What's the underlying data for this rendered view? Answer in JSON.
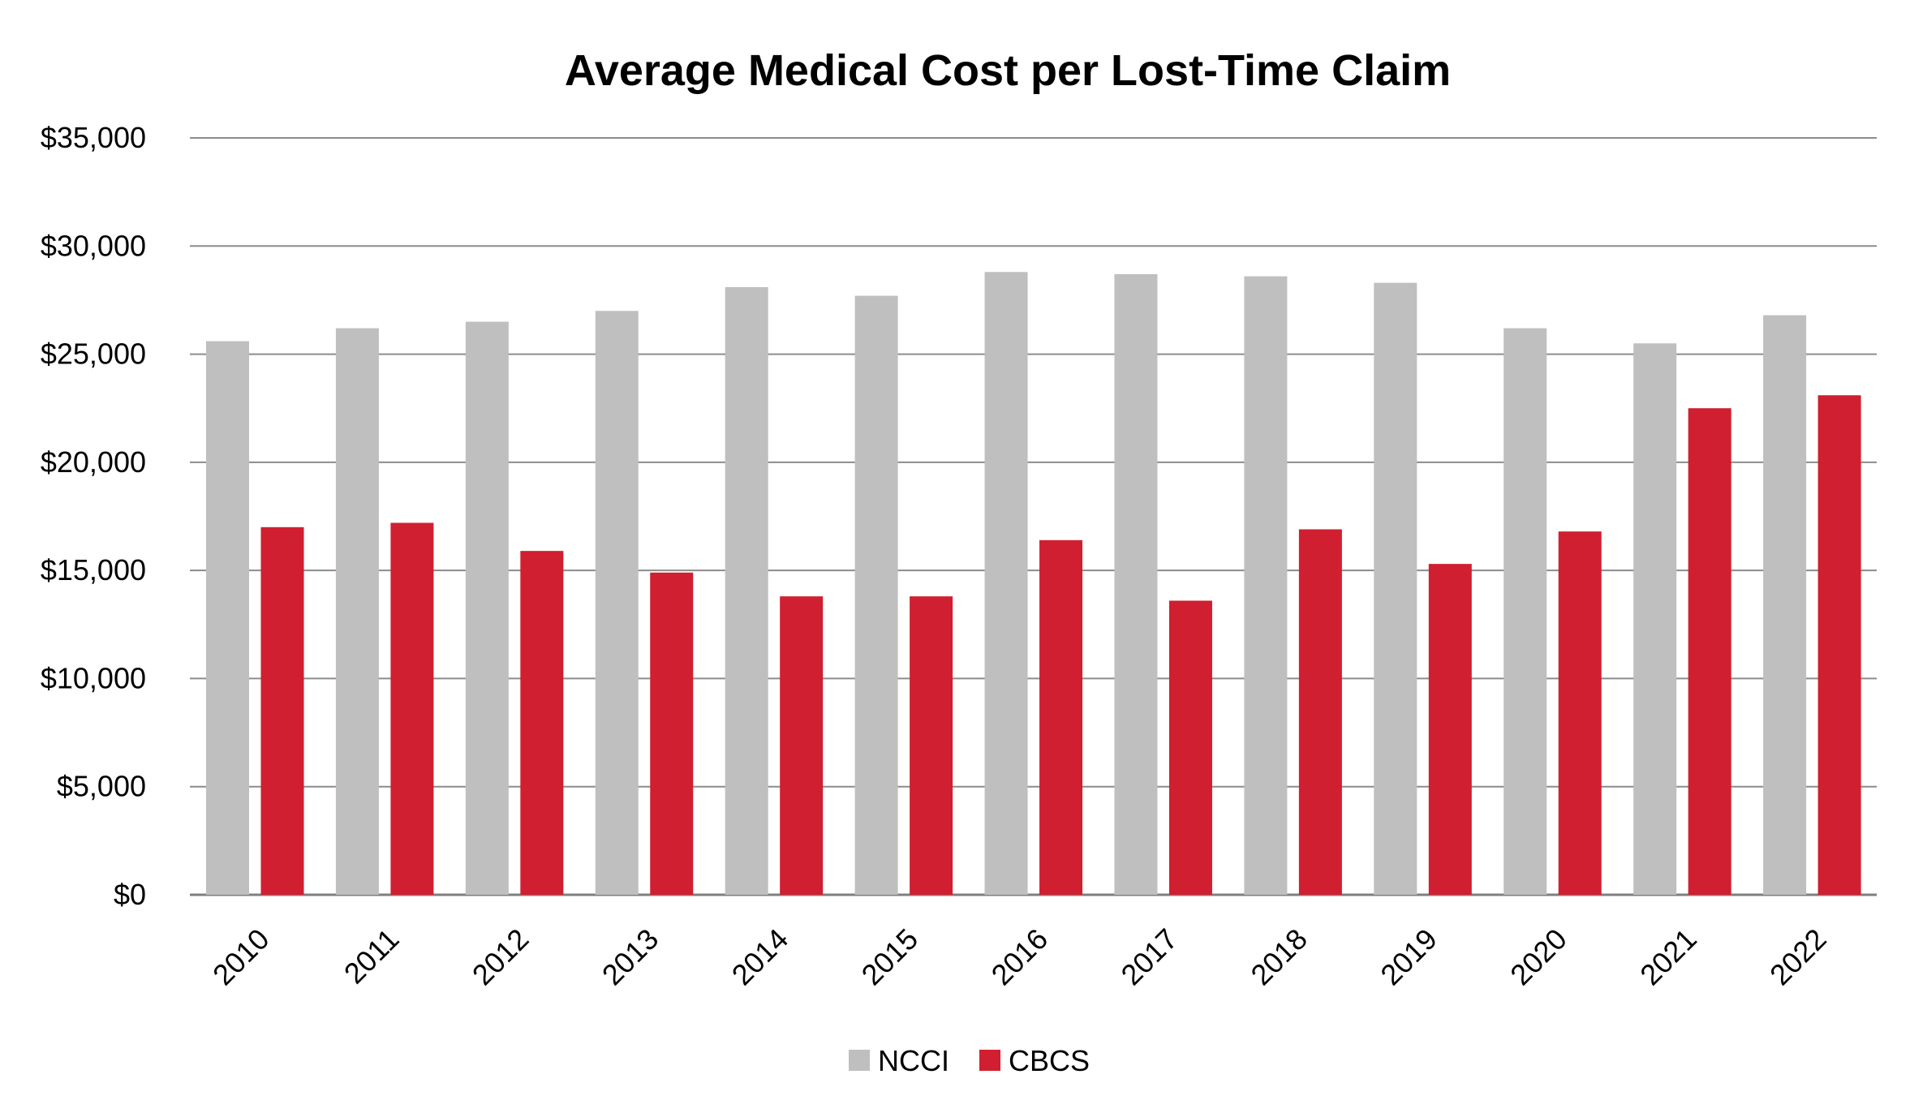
{
  "chart_data": {
    "type": "bar",
    "title": "Average Medical Cost per Lost-Time Claim",
    "xlabel": "",
    "ylabel": "",
    "ylim": [
      0,
      35000
    ],
    "yticks": [
      0,
      5000,
      10000,
      15000,
      20000,
      25000,
      30000,
      35000
    ],
    "ytick_labels": [
      "$0",
      "$5,000",
      "$10,000",
      "$15,000",
      "$20,000",
      "$25,000",
      "$30,000",
      "$35,000"
    ],
    "grid": true,
    "legend_position": "bottom",
    "categories": [
      "2010",
      "2011",
      "2012",
      "2013",
      "2014",
      "2015",
      "2016",
      "2017",
      "2018",
      "2019",
      "2020",
      "2021",
      "2022"
    ],
    "series": [
      {
        "name": "NCCI",
        "color": "#bfbfbf",
        "values": [
          25600,
          26200,
          26500,
          27000,
          28100,
          27700,
          28800,
          28700,
          28600,
          28300,
          26200,
          25500,
          26800
        ]
      },
      {
        "name": "CBCS",
        "color": "#d01f30",
        "values": [
          17000,
          17200,
          15900,
          14900,
          13800,
          13800,
          16400,
          13600,
          16900,
          15300,
          16800,
          22500,
          23100
        ]
      }
    ]
  }
}
